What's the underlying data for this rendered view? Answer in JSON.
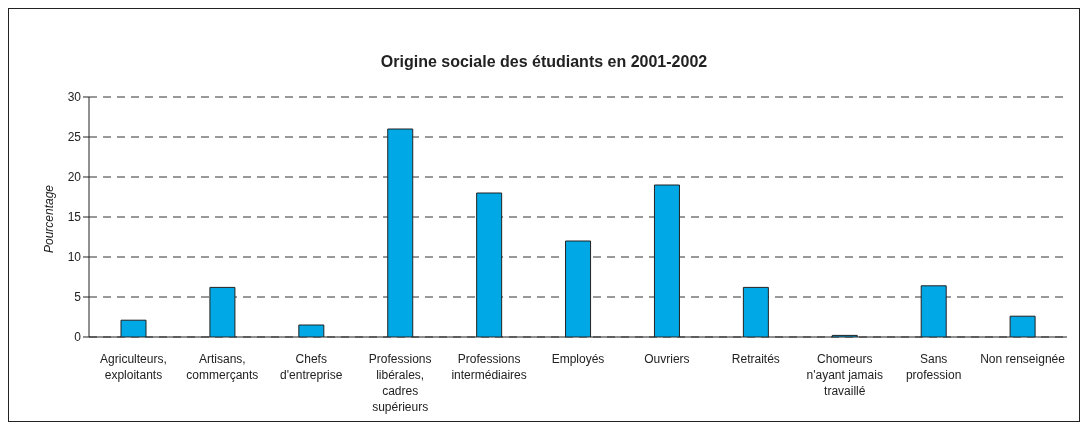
{
  "chart_data": {
    "type": "bar",
    "title": "Origine sociale des étudiants en 2001-2002",
    "ylabel": "Pourcentage",
    "categories": [
      "Agriculteurs, exploitants",
      "Artisans, commerçants",
      "Chefs d'entreprise",
      "Professions libérales, cadres supérieurs",
      "Professions intermédiaires",
      "Employés",
      "Ouvriers",
      "Retraités",
      "Chomeurs n'ayant jamais travaillé",
      "Sans profession",
      "Non renseignée"
    ],
    "values": [
      2.1,
      6.2,
      1.5,
      26,
      18,
      12,
      19,
      6.2,
      0.2,
      6.4,
      2.6
    ],
    "color": "#00a8e6",
    "ylim": [
      0,
      30
    ],
    "yticks": [
      0,
      5,
      10,
      15,
      20,
      25,
      30
    ],
    "grid": "y",
    "line_style": "dashed"
  }
}
